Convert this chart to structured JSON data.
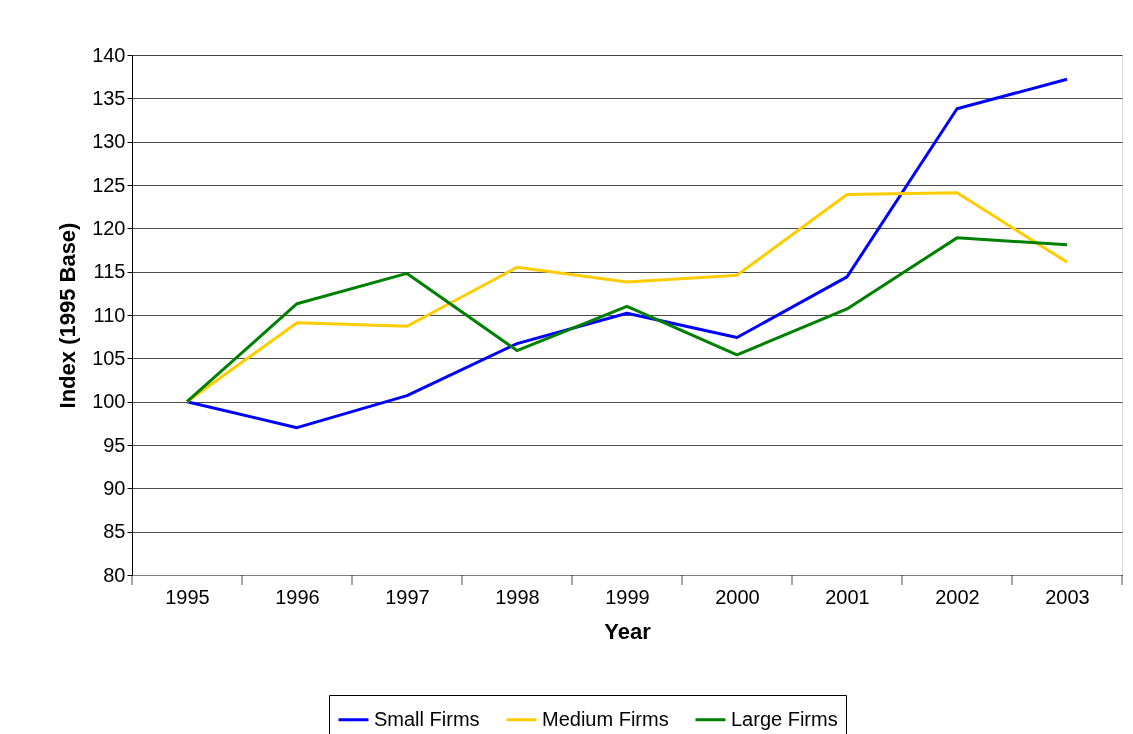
{
  "chart_data": {
    "type": "line",
    "xlabel": "Year",
    "ylabel": "Index (1995 Base)",
    "categories": [
      "1995",
      "1996",
      "1997",
      "1998",
      "1999",
      "2000",
      "2001",
      "2002",
      "2003"
    ],
    "series": [
      {
        "name": "Small Firms",
        "color": "#0000ff",
        "values": [
          100,
          97.0,
          100.7,
          106.7,
          110.2,
          107.4,
          114.4,
          133.8,
          137.2
        ]
      },
      {
        "name": "Medium Firms",
        "color": "#ffcc00",
        "values": [
          100,
          109.1,
          108.7,
          115.5,
          113.8,
          114.6,
          123.9,
          124.1,
          116.1
        ]
      },
      {
        "name": "Large Firms",
        "color": "#008000",
        "values": [
          100,
          111.3,
          114.8,
          105.9,
          111.0,
          105.4,
          110.7,
          118.9,
          118.1
        ]
      }
    ],
    "ylim": [
      80,
      140
    ],
    "yticks": [
      80,
      85,
      90,
      95,
      100,
      105,
      110,
      115,
      120,
      125,
      130,
      135,
      140
    ],
    "grid": "y",
    "legend": "bottom",
    "marker": "none",
    "line_style": "solid"
  }
}
